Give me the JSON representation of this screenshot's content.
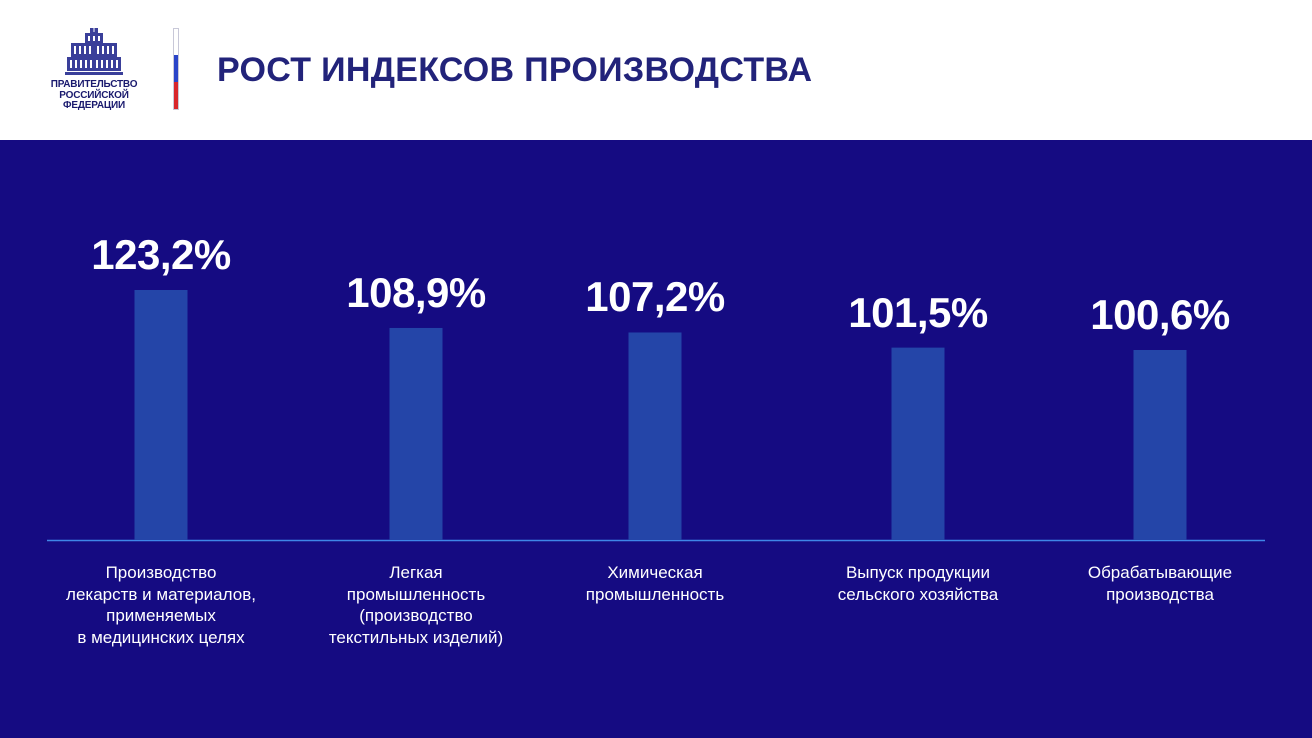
{
  "header": {
    "logo_text": [
      "ПРАВИТЕЛЬСТВО",
      "РОССИЙСКОЙ",
      "ФЕДЕРАЦИИ"
    ],
    "title": "РОСТ ИНДЕКСОВ ПРОИЗВОДСТВА",
    "flag_colors": [
      "#ffffff",
      "#2a44c8",
      "#d9262b"
    ]
  },
  "colors": {
    "background": "#150b82",
    "bar": "#2445a8",
    "axis": "#3f86e8",
    "text": "#ffffff",
    "title": "#22237a"
  },
  "chart_data": {
    "type": "bar",
    "title": "РОСТ ИНДЕКСОВ ПРОИЗВОДСТВА",
    "categories": [
      "Производство\nлекарств и материалов,\nприменяемых\nв медицинских целях",
      "Легкая\nпромышленность\n(производство\nтекстильных изделий)",
      "Химическая\nпромышленность",
      "Выпуск продукции\nсельского хозяйства",
      "Обрабатывающие\nпроизводства"
    ],
    "values": [
      123.2,
      108.9,
      107.2,
      101.5,
      100.6
    ],
    "value_labels": [
      "123,2%",
      "108,9%",
      "107,2%",
      "101,5%",
      "100,6%"
    ],
    "unit": "%",
    "grid": false,
    "legend": "none"
  }
}
